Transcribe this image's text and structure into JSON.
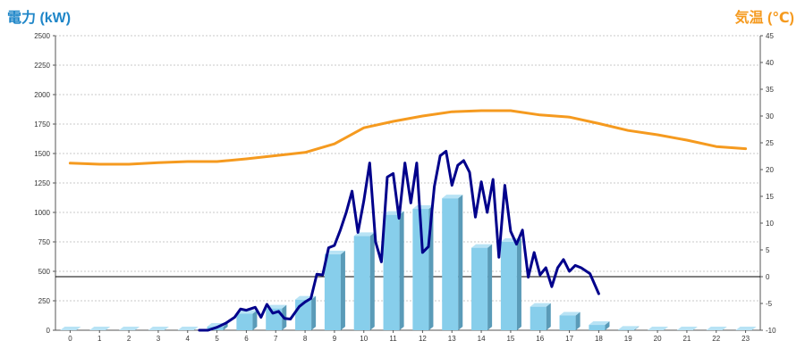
{
  "chart_data": {
    "type": "bar+line",
    "left_axis_label": "電力 (kW)",
    "right_axis_label": "気温 (℃)",
    "x_ticks": [
      "0",
      "1",
      "2",
      "3",
      "4",
      "5",
      "6",
      "7",
      "8",
      "9",
      "10",
      "11",
      "12",
      "13",
      "14",
      "15",
      "16",
      "17",
      "18",
      "19",
      "20",
      "21",
      "22",
      "23"
    ],
    "y_left_ticks": [
      "0",
      "250",
      "500",
      "750",
      "1000",
      "1250",
      "1500",
      "1750",
      "2000",
      "2250",
      "2500"
    ],
    "y_right_ticks": [
      "-10",
      "-5",
      "0",
      "5",
      "10",
      "15",
      "20",
      "25",
      "30",
      "35",
      "40",
      "45"
    ],
    "ylim_left": [
      0,
      2500
    ],
    "ylim_right": [
      -10,
      45
    ],
    "grid": true,
    "colors": {
      "bar": "#87ceeb",
      "bar_side": "#5a9bb8",
      "bar_top": "#b8e3f5",
      "power_line": "#00008b",
      "temperature_line": "#f59a1f",
      "zero_line": "#000000",
      "left_label": "#1f86c8",
      "right_label": "#f59a1f"
    },
    "series": [
      {
        "type": "bar",
        "axis": "left",
        "values": [
          0,
          0,
          0,
          0,
          0,
          30,
          140,
          185,
          260,
          645,
          800,
          980,
          1030,
          1120,
          700,
          750,
          200,
          125,
          45,
          5,
          0,
          0,
          0,
          0
        ]
      },
      {
        "type": "line",
        "axis": "left",
        "x": [
          4.4,
          4.7,
          5.0,
          5.3,
          5.6,
          5.8,
          6.0,
          6.3,
          6.5,
          6.7,
          6.9,
          7.1,
          7.3,
          7.5,
          7.8,
          8.0,
          8.2,
          8.4,
          8.6,
          8.8,
          9.0,
          9.2,
          9.4,
          9.6,
          9.8,
          10.0,
          10.2,
          10.4,
          10.6,
          10.8,
          11.0,
          11.2,
          11.4,
          11.6,
          11.8,
          12.0,
          12.2,
          12.4,
          12.6,
          12.8,
          13.0,
          13.2,
          13.4,
          13.6,
          13.8,
          14.0,
          14.2,
          14.4,
          14.6,
          14.8,
          15.0,
          15.2,
          15.4,
          15.6,
          15.8,
          16.0,
          16.2,
          16.4,
          16.6,
          16.8,
          17.0,
          17.2,
          17.4,
          17.7,
          18.0
        ],
        "values": [
          0,
          0,
          25,
          60,
          110,
          180,
          170,
          195,
          110,
          220,
          145,
          160,
          100,
          95,
          200,
          240,
          270,
          475,
          470,
          700,
          720,
          850,
          1000,
          1180,
          830,
          1100,
          1420,
          750,
          580,
          1300,
          1330,
          950,
          1420,
          1080,
          1420,
          660,
          710,
          1220,
          1480,
          1520,
          1230,
          1400,
          1440,
          1340,
          960,
          1260,
          1000,
          1280,
          620,
          1230,
          840,
          730,
          850,
          450,
          660,
          470,
          530,
          370,
          530,
          600,
          500,
          550,
          530,
          480,
          310
        ],
        "values_note": ""
      },
      {
        "type": "line",
        "axis": "right",
        "x": [
          0,
          1,
          2,
          3,
          4,
          5,
          6,
          7,
          8,
          9,
          10,
          11,
          12,
          13,
          14,
          15,
          16,
          17,
          18,
          19,
          20,
          21,
          22,
          23
        ],
        "values": [
          21.2,
          21.0,
          21.0,
          21.3,
          21.5,
          21.5,
          22.0,
          22.6,
          23.2,
          24.8,
          27.8,
          29.0,
          30.0,
          30.8,
          31.0,
          31.0,
          30.2,
          29.8,
          28.6,
          27.3,
          26.5,
          25.5,
          24.3,
          23.9
        ]
      }
    ]
  }
}
